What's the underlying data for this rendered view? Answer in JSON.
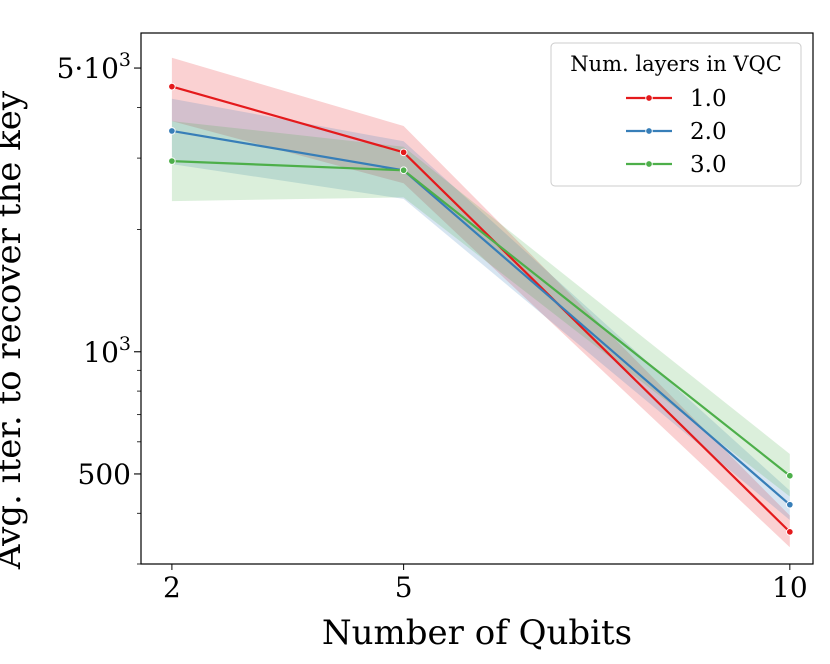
{
  "chart_data": {
    "type": "line",
    "title": "",
    "xlabel": "Number of Qubits",
    "ylabel": "Avg. iter. to recover the key",
    "yscale": "log",
    "x": [
      2,
      5,
      10
    ],
    "xlim": [
      1.6,
      10.3
    ],
    "ylim": [
      300,
      6100
    ],
    "x_tick_labels": [
      "2",
      "5",
      "10"
    ],
    "y_major_ticks": [
      {
        "value": 500,
        "label": "500"
      },
      {
        "value": 1000,
        "label": "10",
        "sup": "3"
      },
      {
        "value": 5000,
        "label": "5·10",
        "sup": "3"
      }
    ],
    "y_minor_ticks": [
      300,
      400,
      600,
      700,
      800,
      900,
      2000,
      3000,
      4000
    ],
    "legend": {
      "title": "Num. layers in VQC",
      "position": "top-right"
    },
    "series": [
      {
        "name": "1.0",
        "color": "#e41a1c",
        "values": [
          4500,
          3100,
          360
        ],
        "ci_low": [
          3700,
          2600,
          330
        ],
        "ci_high": [
          5300,
          3600,
          395
        ]
      },
      {
        "name": "2.0",
        "color": "#377eb8",
        "values": [
          3500,
          2800,
          420
        ],
        "ci_low": [
          2900,
          2380,
          385
        ],
        "ci_high": [
          4200,
          3300,
          455
        ]
      },
      {
        "name": "3.0",
        "color": "#4daf4a",
        "values": [
          2950,
          2800,
          495
        ],
        "ci_low": [
          2350,
          2400,
          440
        ],
        "ci_high": [
          3700,
          3200,
          560
        ]
      }
    ]
  }
}
